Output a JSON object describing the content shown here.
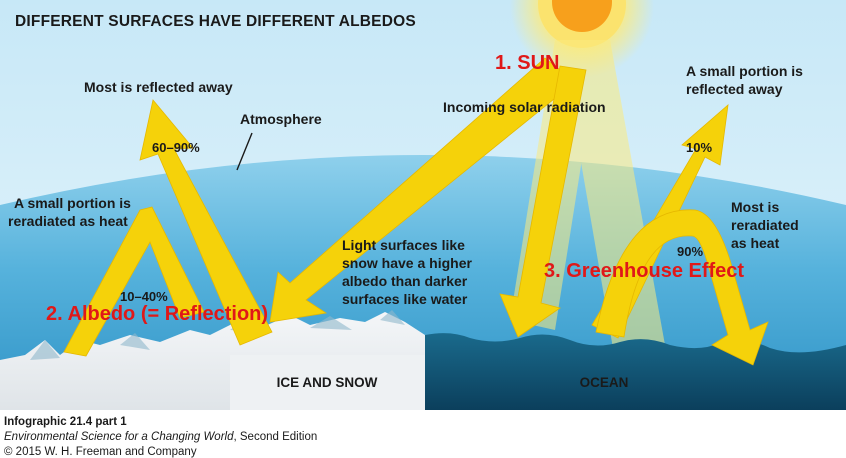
{
  "title": "DIFFERENT SURFACES HAVE DIFFERENT ALBEDOS",
  "labels": {
    "sun": "1. SUN",
    "incoming": "Incoming solar radiation",
    "atmosphere": "Atmosphere",
    "reflected_left": "Most is reflected away",
    "pct_60_90": "60–90%",
    "reradiated_left_1": "A small portion is",
    "reradiated_left_2": "reradiated as heat",
    "pct_10_40": "10–40%",
    "albedo": "2. Albedo (= Reflection)",
    "light_surfaces_1": "Light surfaces like",
    "light_surfaces_2": "snow have a higher",
    "light_surfaces_3": "albedo than darker",
    "light_surfaces_4": "surfaces like water",
    "reflected_right_1": "A small portion is",
    "reflected_right_2": "reflected away",
    "pct_10": "10%",
    "reradiated_right_1": "Most is",
    "reradiated_right_2": "reradiated",
    "reradiated_right_3": "as heat",
    "pct_90": "90%",
    "greenhouse": "3. Greenhouse Effect",
    "ice_snow": "ICE AND SNOW",
    "ocean": "OCEAN"
  },
  "credits": {
    "line1": "Infographic 21.4 part 1",
    "book": "Environmental Science for a Changing World",
    "edition": ", Second Edition",
    "line3": "© 2015 W. H. Freeman and Company"
  },
  "colors": {
    "arrow": "#f5d20a",
    "sun": "#f7a01c",
    "sky_top": "#ccebf8",
    "atmosphere": "#5ab6dd",
    "ocean": "#0d4b6c",
    "emphasis": "#e01818"
  }
}
